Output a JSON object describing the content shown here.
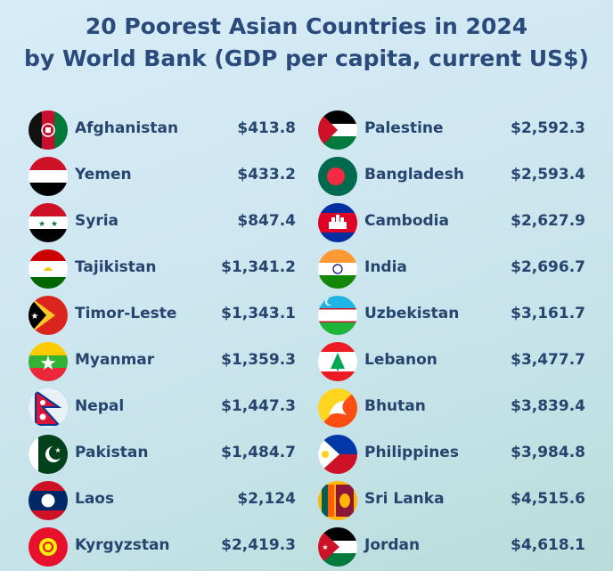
{
  "title_line1": "20 Poorest Asian Countries in 2024",
  "title_line2": "by World Bank (GDP per capita, current US$)",
  "left": [
    {
      "name": "Afghanistan",
      "value": "$413.8",
      "flag": "afghanistan-flag-icon"
    },
    {
      "name": "Yemen",
      "value": "$433.2",
      "flag": "yemen-flag-icon"
    },
    {
      "name": "Syria",
      "value": "$847.4",
      "flag": "syria-flag-icon"
    },
    {
      "name": "Tajikistan",
      "value": "$1,341.2",
      "flag": "tajikistan-flag-icon"
    },
    {
      "name": "Timor-Leste",
      "value": "$1,343.1",
      "flag": "timor-leste-flag-icon"
    },
    {
      "name": "Myanmar",
      "value": "$1,359.3",
      "flag": "myanmar-flag-icon"
    },
    {
      "name": "Nepal",
      "value": "$1,447.3",
      "flag": "nepal-flag-icon"
    },
    {
      "name": "Pakistan",
      "value": "$1,484.7",
      "flag": "pakistan-flag-icon"
    },
    {
      "name": "Laos",
      "value": "$2,124",
      "flag": "laos-flag-icon"
    },
    {
      "name": "Kyrgyzstan",
      "value": "$2,419.3",
      "flag": "kyrgyzstan-flag-icon"
    }
  ],
  "right": [
    {
      "name": "Palestine",
      "value": "$2,592.3",
      "flag": "palestine-flag-icon"
    },
    {
      "name": "Bangladesh",
      "value": "$2,593.4",
      "flag": "bangladesh-flag-icon"
    },
    {
      "name": "Cambodia",
      "value": "$2,627.9",
      "flag": "cambodia-flag-icon"
    },
    {
      "name": "India",
      "value": "$2,696.7",
      "flag": "india-flag-icon"
    },
    {
      "name": "Uzbekistan",
      "value": "$3,161.7",
      "flag": "uzbekistan-flag-icon"
    },
    {
      "name": "Lebanon",
      "value": "$3,477.7",
      "flag": "lebanon-flag-icon"
    },
    {
      "name": "Bhutan",
      "value": "$3,839.4",
      "flag": "bhutan-flag-icon"
    },
    {
      "name": "Philippines",
      "value": "$3,984.8",
      "flag": "philippines-flag-icon"
    },
    {
      "name": "Sri Lanka",
      "value": "$4,515.6",
      "flag": "sri-lanka-flag-icon"
    },
    {
      "name": "Jordan",
      "value": "$4,618.1",
      "flag": "jordan-flag-icon"
    }
  ],
  "colors": {
    "text": "#27446f",
    "title": "#2a4a7c",
    "background_top": "#d7ecf6",
    "background_bottom": "#b9dcd9"
  }
}
